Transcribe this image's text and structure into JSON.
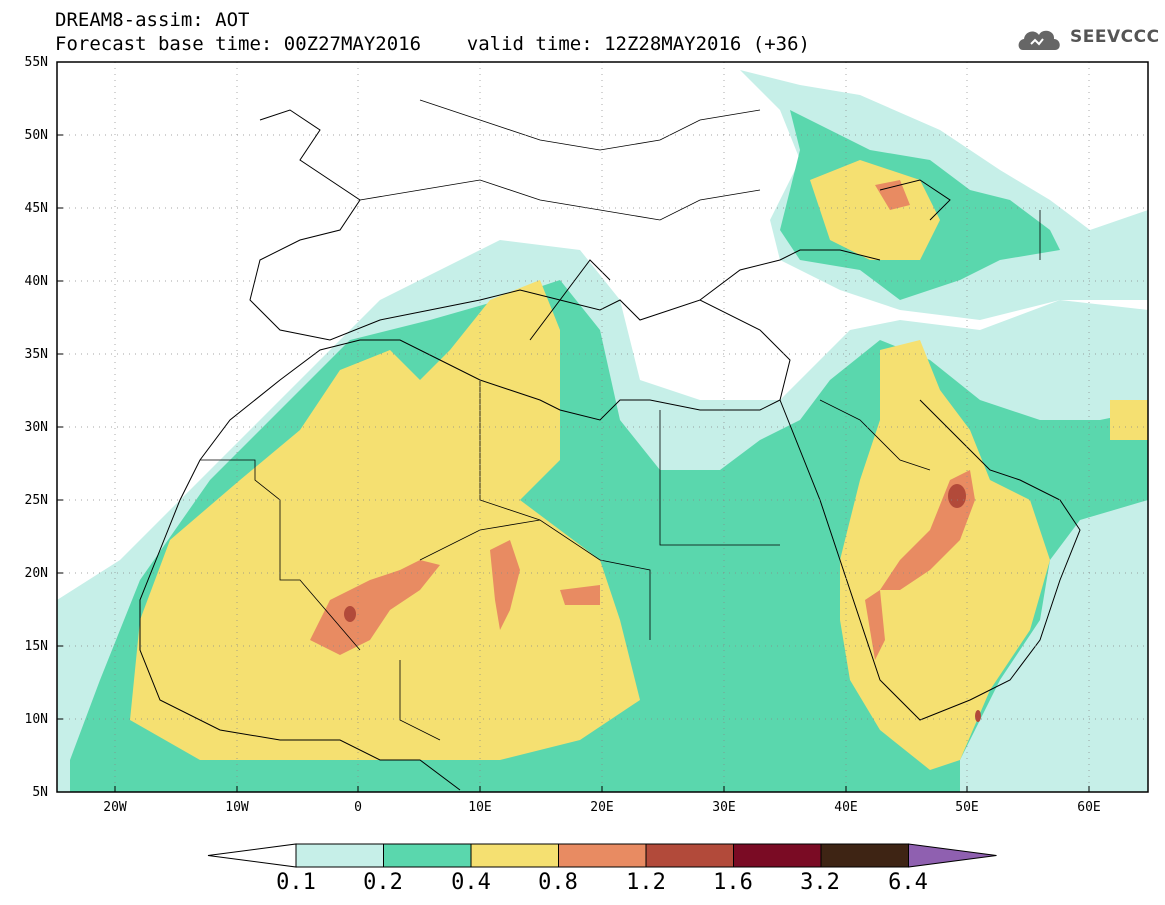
{
  "header": {
    "line1": "DREAM8-assim: AOT",
    "line2": "Forecast base time: 00Z27MAY2016    valid time: 12Z28MAY2016 (+36)",
    "logo_text": "SEEVCCC"
  },
  "map": {
    "lat_labels": [
      "55N",
      "50N",
      "45N",
      "40N",
      "35N",
      "30N",
      "25N",
      "20N",
      "15N",
      "10N",
      "5N"
    ],
    "lon_labels": [
      "20W",
      "10W",
      "0",
      "10E",
      "20E",
      "30E",
      "40E",
      "50E",
      "60E"
    ],
    "region": "North Africa, Middle East and Europe",
    "variable": "Aerosol Optical Thickness"
  },
  "colorbar": {
    "levels": [
      "0.1",
      "0.2",
      "0.4",
      "0.8",
      "1.2",
      "1.6",
      "3.2",
      "6.4"
    ],
    "colors": [
      "#ffffff",
      "#c6efe8",
      "#5ad7ad",
      "#f5e071",
      "#e88b62",
      "#b24a3a",
      "#7a0b24",
      "#3e2414",
      "#8f60b0"
    ]
  }
}
